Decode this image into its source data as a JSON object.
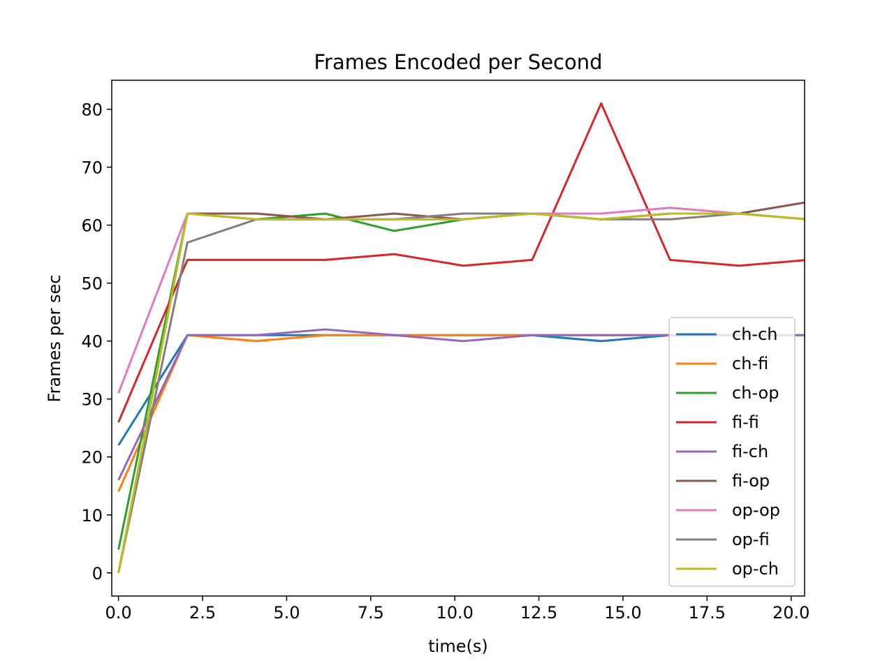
{
  "chart_data": {
    "type": "line",
    "title": "Frames Encoded per Second",
    "xlabel": "time(s)",
    "ylabel": "Frames per sec",
    "xlim": [
      -0.2,
      20.4
    ],
    "ylim": [
      -4,
      85
    ],
    "xticks": [
      0.0,
      2.5,
      5.0,
      7.5,
      10.0,
      12.5,
      15.0,
      17.5,
      20.0
    ],
    "xtick_labels": [
      "0.0",
      "2.5",
      "5.0",
      "7.5",
      "10.0",
      "12.5",
      "15.0",
      "17.5",
      "20.0"
    ],
    "yticks": [
      0,
      10,
      20,
      30,
      40,
      50,
      60,
      70,
      80
    ],
    "ytick_labels": [
      "0",
      "10",
      "20",
      "30",
      "40",
      "50",
      "60",
      "70",
      "80"
    ],
    "grid": false,
    "legend_position": "lower-right",
    "x": [
      0.0,
      2.05,
      4.1,
      6.15,
      8.2,
      10.25,
      12.3,
      14.35,
      16.4,
      18.45,
      20.5
    ],
    "series": [
      {
        "name": "ch-ch",
        "color": "#1f77b4",
        "values": [
          22,
          41,
          41,
          41,
          41,
          41,
          41,
          40,
          41,
          41,
          41
        ]
      },
      {
        "name": "ch-fi",
        "color": "#ff7f0e",
        "values": [
          14,
          41,
          40,
          41,
          41,
          41,
          41,
          41,
          41,
          41,
          41
        ]
      },
      {
        "name": "ch-op",
        "color": "#2ca02c",
        "values": [
          4,
          62,
          61,
          62,
          59,
          61,
          62,
          61,
          62,
          62,
          61
        ]
      },
      {
        "name": "fi-fi",
        "color": "#d62728",
        "values": [
          26,
          54,
          54,
          54,
          55,
          53,
          54,
          81,
          54,
          53,
          54
        ]
      },
      {
        "name": "fi-ch",
        "color": "#9467bd",
        "values": [
          16,
          41,
          41,
          42,
          41,
          40,
          41,
          41,
          41,
          41,
          41
        ]
      },
      {
        "name": "fi-op",
        "color": "#8c564b",
        "values": [
          0,
          62,
          62,
          61,
          62,
          61,
          62,
          61,
          62,
          62,
          64
        ]
      },
      {
        "name": "op-op",
        "color": "#e377c2",
        "values": [
          31,
          62,
          61,
          61,
          61,
          61,
          62,
          62,
          63,
          62,
          61
        ]
      },
      {
        "name": "op-fi",
        "color": "#7f7f7f",
        "values": [
          0,
          57,
          61,
          61,
          61,
          62,
          62,
          61,
          61,
          62,
          61
        ]
      },
      {
        "name": "op-ch",
        "color": "#bcbd22",
        "values": [
          0,
          62,
          61,
          61,
          61,
          61,
          62,
          61,
          62,
          62,
          61
        ]
      }
    ]
  }
}
